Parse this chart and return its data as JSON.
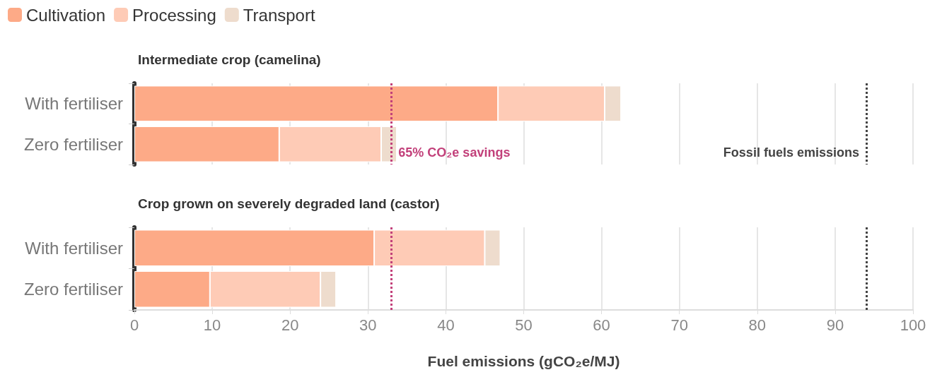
{
  "chart_data": [
    {
      "type": "bar",
      "orientation": "horizontal",
      "stacked": true,
      "title": "Intermediate crop (camelina)",
      "categories": [
        "With fertiliser",
        "Zero fertiliser"
      ],
      "series": [
        {
          "name": "Cultivation",
          "color": "#fdaa87",
          "values": [
            46.7,
            18.6
          ]
        },
        {
          "name": "Processing",
          "color": "#fecbb6",
          "values": [
            13.7,
            13.1
          ]
        },
        {
          "name": "Transport",
          "color": "#eedccd",
          "values": [
            2.1,
            2.0
          ]
        }
      ],
      "xlim": [
        0,
        100
      ],
      "xticks": [
        0,
        10,
        20,
        30,
        40,
        50,
        60,
        70,
        80,
        90,
        100
      ],
      "grid": "x",
      "legend": "top left",
      "tick_labels": "y",
      "ref_lines": [
        {
          "axis": "x",
          "value": 33,
          "label": "65% CO₂e savings",
          "color": "#c2407a",
          "line_style": "dotted"
        },
        {
          "axis": "x",
          "value": 94,
          "label": "Fossil fuels emissions",
          "color": "#444444",
          "line_style": "dotted"
        }
      ]
    },
    {
      "type": "bar",
      "orientation": "horizontal",
      "stacked": true,
      "title": "Crop grown on severely degraded land (castor)",
      "categories": [
        "With fertiliser",
        "Zero fertiliser"
      ],
      "series": [
        {
          "color": "#fdaa87",
          "values": [
            30.8,
            9.7
          ]
        },
        {
          "color": "#fecbb6",
          "values": [
            14.2,
            14.2
          ]
        },
        {
          "color": "#eedccd",
          "values": [
            2.0,
            2.0
          ]
        }
      ],
      "xlim": [
        0,
        100
      ],
      "xticks": [
        0,
        10,
        20,
        30,
        40,
        50,
        60,
        70,
        80,
        90,
        100
      ],
      "grid": "x",
      "xlabel": "Fuel emissions (gCO₂e/MJ)",
      "ref_lines": [
        {
          "axis": "x",
          "value": 33,
          "color": "#c2407a",
          "line_style": "dotted"
        },
        {
          "axis": "x",
          "value": 94,
          "color": "#444444",
          "line_style": "dotted"
        }
      ]
    }
  ]
}
